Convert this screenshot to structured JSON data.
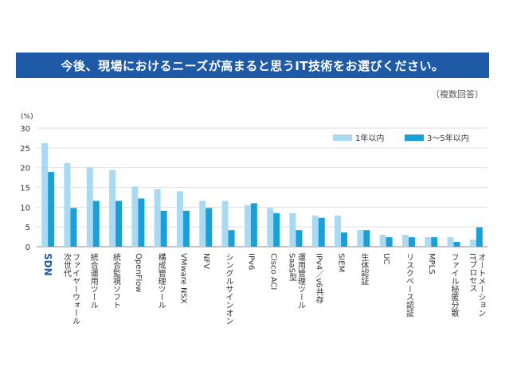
{
  "title": "今後、現場におけるニーズが高まると思うIT技術をお選びください。",
  "note": "（複数回答）",
  "colors": {
    "banner": "#1f5aa6",
    "light": "#a9daf3",
    "dark": "#1aa0d8",
    "highlight": "#1f5aa6"
  },
  "chart_data": {
    "type": "bar",
    "ylabel": "(%)",
    "ylim": [
      0,
      30
    ],
    "yticks": [
      0,
      5,
      10,
      15,
      20,
      25,
      30
    ],
    "grid": true,
    "legend_position": "top-right",
    "categories": [
      "SDN",
      "次世代ファイヤーウォール",
      "統合運用ツール",
      "統合監視ソフト",
      "OpenFlow",
      "構成管理ツール",
      "VMware NSX",
      "NFV",
      "シングルサインオン",
      "IPv6",
      "Cisco ACI",
      "SaaS型運用管理ツール",
      "IPv4／v6共存",
      "SIEM",
      "生体認証",
      "UC",
      "リスクベース認証",
      "MPLS",
      "ファイル秘匿分散",
      "ITプロセスオートメーション"
    ],
    "category_lines": [
      [
        "SDN"
      ],
      [
        "次世代",
        "ファイヤーウォール"
      ],
      [
        "統合運用ツール"
      ],
      [
        "統合監視ソフト"
      ],
      [
        "OpenFlow"
      ],
      [
        "構成管理ツール"
      ],
      [
        "VMware NSX"
      ],
      [
        "NFV"
      ],
      [
        "シングルサインオン"
      ],
      [
        "IPv6"
      ],
      [
        "Cisco ACI"
      ],
      [
        "SaaS型",
        "運用管理ツール"
      ],
      [
        "IPv4／v6共存"
      ],
      [
        "SIEM"
      ],
      [
        "生体認証"
      ],
      [
        "UC"
      ],
      [
        "リスクベース認証"
      ],
      [
        "MPLS"
      ],
      [
        "ファイル秘匿分散"
      ],
      [
        "ITプロセス",
        "オートメーション"
      ]
    ],
    "series": [
      {
        "name": "1年以内",
        "values": [
          26.2,
          21.2,
          20.1,
          19.4,
          15.2,
          14.6,
          14.0,
          11.6,
          11.6,
          10.5,
          9.8,
          8.5,
          7.9,
          7.9,
          4.2,
          3.0,
          3.0,
          2.4,
          2.4,
          1.8
        ]
      },
      {
        "name": "3～5年以内",
        "values": [
          18.9,
          9.8,
          11.6,
          11.6,
          12.2,
          9.1,
          9.1,
          9.8,
          4.2,
          11.0,
          8.5,
          4.2,
          7.3,
          3.6,
          4.2,
          2.4,
          2.4,
          2.4,
          1.2,
          4.9
        ]
      }
    ]
  }
}
